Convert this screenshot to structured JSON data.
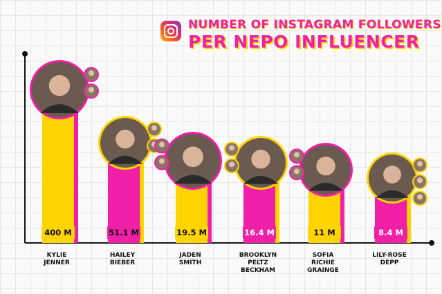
{
  "title": {
    "line1": "NUMBER OF INSTAGRAM FOLLOWERS",
    "line2": "PER NEPO INFLUENCER"
  },
  "icon": "instagram-logo-icon",
  "colors": {
    "pink": "#f01fa8",
    "yellow": "#ffd400",
    "axis": "#111111"
  },
  "chart_data": {
    "type": "bar",
    "categories": [
      "KYLIE JENNER",
      "HAILEY BIEBER",
      "JADEN SMITH",
      "BROOKLYN PELTZ BECKHAM",
      "SOFIA RICHIE GRAINGE",
      "LILY-ROSE DEPP"
    ],
    "category_lines": [
      [
        "KYLIE",
        "JENNER"
      ],
      [
        "HAILEY",
        "BIEBER"
      ],
      [
        "JADEN",
        "SMITH"
      ],
      [
        "BROOKLYN",
        "PELTZ",
        "BECKHAM"
      ],
      [
        "SOFIA",
        "RICHIE",
        "GRAINGE"
      ],
      [
        "LILY-ROSE",
        "DEPP"
      ]
    ],
    "values": [
      400,
      51.1,
      19.5,
      16.4,
      11,
      8.4
    ],
    "value_labels": [
      "400 M",
      "51.1 M",
      "19.5 M",
      "16.4 M",
      "11 M",
      "8.4 M"
    ],
    "bar_colors": [
      "#ffd400",
      "#f01fa8",
      "#ffd400",
      "#f01fa8",
      "#ffd400",
      "#f01fa8"
    ],
    "accent_colors": [
      "#f01fa8",
      "#ffd400",
      "#f01fa8",
      "#ffd400",
      "#f01fa8",
      "#ffd400"
    ],
    "value_label_colors": [
      "#111111",
      "#111111",
      "#111111",
      "#ffffff",
      "#111111",
      "#ffffff"
    ],
    "small_photo_counts": [
      2,
      2,
      2,
      2,
      2,
      3
    ],
    "small_photo_side": [
      "right",
      "right",
      "left",
      "left",
      "left",
      "right"
    ],
    "grid": true
  }
}
